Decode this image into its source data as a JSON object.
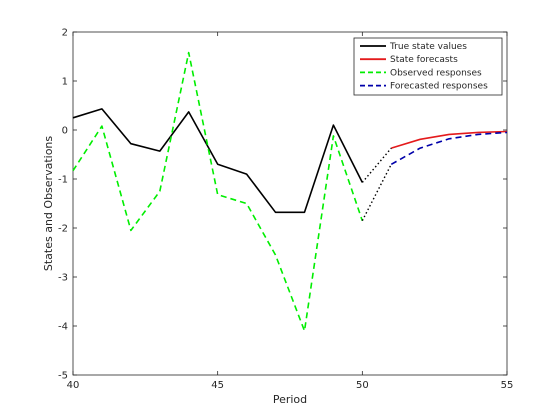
{
  "chart_data": {
    "type": "line",
    "xlabel": "Period",
    "ylabel": "States and Observations",
    "xlim": [
      40,
      55
    ],
    "ylim": [
      -5,
      2
    ],
    "x_ticks": [
      40,
      45,
      50,
      55
    ],
    "y_ticks": [
      -5,
      -4,
      -3,
      -2,
      -1,
      0,
      1,
      2
    ],
    "legend_position": "top-right",
    "grid": false,
    "series": [
      {
        "name": "True state values",
        "color": "#000000",
        "style": "solid",
        "x": [
          40,
          41,
          42,
          43,
          44,
          45,
          46,
          47,
          48,
          49,
          50
        ],
        "y": [
          0.25,
          0.43,
          -0.28,
          -0.43,
          0.37,
          -0.7,
          -0.9,
          -1.68,
          -1.68,
          0.1,
          -1.07
        ]
      },
      {
        "name": "State forecasts",
        "color": "#e41a1c",
        "style": "solid",
        "x": [
          51,
          52,
          53,
          54,
          55
        ],
        "y": [
          -0.37,
          -0.19,
          -0.09,
          -0.05,
          -0.03
        ]
      },
      {
        "name": "Observed responses",
        "color": "#00ee00",
        "style": "dashed",
        "x": [
          40,
          41,
          42,
          43,
          44,
          45,
          46,
          47,
          48,
          49,
          50
        ],
        "y": [
          -0.83,
          0.08,
          -2.05,
          -1.25,
          1.58,
          -1.32,
          -1.5,
          -2.55,
          -4.1,
          -0.12,
          -1.85
        ]
      },
      {
        "name": "Forecasted responses",
        "color": "#0000aa",
        "style": "dashed",
        "x": [
          51,
          52,
          53,
          54,
          55
        ],
        "y": [
          -0.7,
          -0.37,
          -0.18,
          -0.09,
          -0.05
        ]
      }
    ],
    "connectors": [
      {
        "from_series": 0,
        "to_series": 1,
        "color": "#000000",
        "style": "dotted"
      },
      {
        "from_series": 2,
        "to_series": 3,
        "color": "#000000",
        "style": "dotted"
      }
    ]
  }
}
